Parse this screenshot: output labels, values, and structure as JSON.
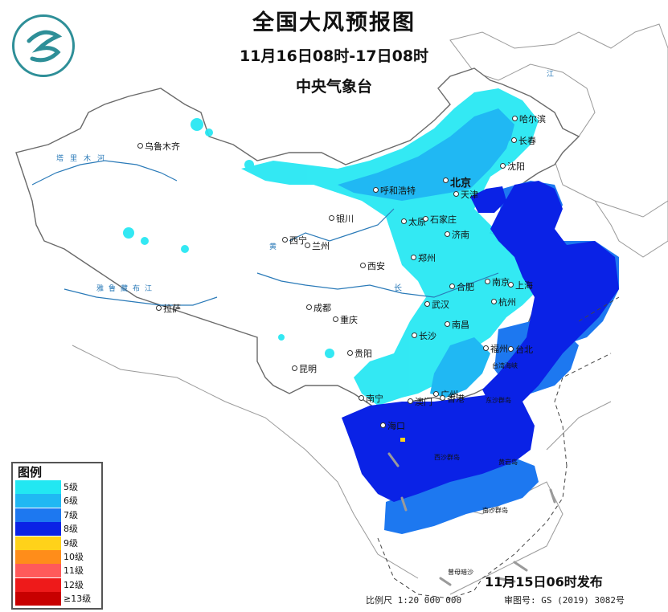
{
  "header": {
    "title": "全国大风预报图",
    "period": "11月16日08时-17日08时",
    "issuer": "中央气象台"
  },
  "logo": {
    "name": "cma-logo-icon"
  },
  "legend": {
    "title": "图例",
    "items": [
      {
        "label": "5级",
        "color": "#22e7f2"
      },
      {
        "label": "6级",
        "color": "#20b8f3"
      },
      {
        "label": "7级",
        "color": "#1d78f0"
      },
      {
        "label": "8级",
        "color": "#0a22e6"
      },
      {
        "label": "9级",
        "color": "#ffd21a"
      },
      {
        "label": "10级",
        "color": "#ff8d1a"
      },
      {
        "label": "11级",
        "color": "#ff5a5a"
      },
      {
        "label": "12级",
        "color": "#ee1a1a"
      },
      {
        "label": "≥13级",
        "color": "#c80000"
      }
    ]
  },
  "issued": "11月15日06时发布",
  "footer": {
    "scale": "比例尺 1:20 000 000",
    "map_no": "审图号: GS (2019) 3082号"
  },
  "cities": [
    {
      "name": "乌鲁木齐"
    },
    {
      "name": "哈尔滨"
    },
    {
      "name": "长春"
    },
    {
      "name": "沈阳"
    },
    {
      "name": "北京"
    },
    {
      "name": "天津"
    },
    {
      "name": "呼和浩特"
    },
    {
      "name": "银川"
    },
    {
      "name": "太原"
    },
    {
      "name": "石家庄"
    },
    {
      "name": "济南"
    },
    {
      "name": "西宁"
    },
    {
      "name": "兰州"
    },
    {
      "name": "郑州"
    },
    {
      "name": "西安"
    },
    {
      "name": "合肥"
    },
    {
      "name": "南京"
    },
    {
      "name": "上海"
    },
    {
      "name": "拉萨"
    },
    {
      "name": "成都"
    },
    {
      "name": "武汉"
    },
    {
      "name": "杭州"
    },
    {
      "name": "重庆"
    },
    {
      "name": "南昌"
    },
    {
      "name": "长沙"
    },
    {
      "name": "福州"
    },
    {
      "name": "台北"
    },
    {
      "name": "贵阳"
    },
    {
      "name": "昆明"
    },
    {
      "name": "广州"
    },
    {
      "name": "南宁"
    },
    {
      "name": "澳门"
    },
    {
      "name": "香港"
    },
    {
      "name": "海口"
    }
  ],
  "map_labels": {
    "river_tarim": "塔里木河",
    "river_yarlung": "雅鲁藏布江",
    "river_yangtze": "长",
    "river_huang": "黄",
    "taiwan_strait": "台湾海峡",
    "dongsha": "东沙群岛",
    "xisha": "西沙群岛",
    "nansha": "南沙群岛",
    "huangyan": "黄岩岛",
    "zengmu": "曾母暗沙",
    "heilongjiang": "江"
  }
}
